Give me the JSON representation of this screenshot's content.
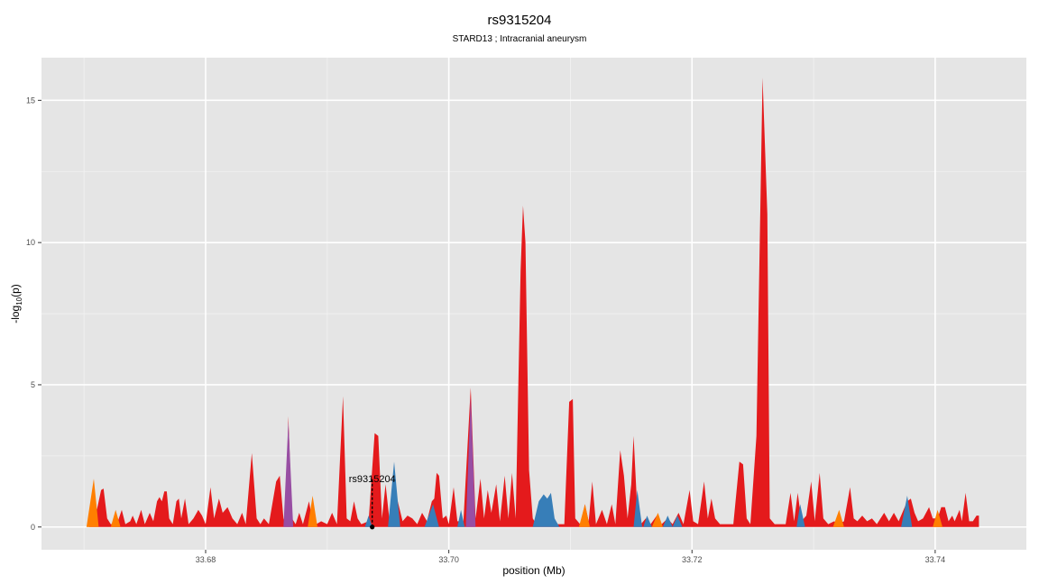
{
  "chart_data": {
    "type": "area",
    "title": "rs9315204",
    "subtitle": "STARD13 ; Intracranial aneurysm",
    "xlabel": "position (Mb)",
    "ylabel_main": "-log",
    "ylabel_sub": "10",
    "ylabel_tail": "(p)",
    "xlim": [
      33.6665,
      33.7475
    ],
    "ylim": [
      -0.8,
      16.5
    ],
    "xticks": [
      {
        "value": 33.68,
        "label": "33.68"
      },
      {
        "value": 33.7,
        "label": "33.70"
      },
      {
        "value": 33.72,
        "label": "33.72"
      },
      {
        "value": 33.74,
        "label": "33.74"
      }
    ],
    "yticks": [
      {
        "value": 0,
        "label": "0"
      },
      {
        "value": 5,
        "label": "5"
      },
      {
        "value": 10,
        "label": "10"
      },
      {
        "value": 15,
        "label": "15"
      }
    ],
    "grid": true,
    "background": "#e5e5e5",
    "colors": {
      "red": "#e41a1c",
      "blue": "#377eb8",
      "orange": "#ff7f00",
      "purple": "#984ea3"
    },
    "annotation": {
      "label": "rs9315204",
      "x": 33.6937,
      "y": 0,
      "line_top": 1.7
    },
    "series": [
      {
        "color": "red",
        "points": [
          [
            33.6704,
            0.4
          ],
          [
            33.6708,
            0.1
          ],
          [
            33.6714,
            1.3
          ],
          [
            33.6716,
            1.35
          ],
          [
            33.6719,
            0.3
          ],
          [
            33.6722,
            0.1
          ],
          [
            33.6727,
            0.1
          ],
          [
            33.6731,
            0.6
          ],
          [
            33.6734,
            0.1
          ],
          [
            33.6738,
            0.2
          ],
          [
            33.674,
            0.4
          ],
          [
            33.6743,
            0.1
          ],
          [
            33.6747,
            0.6
          ],
          [
            33.675,
            0.1
          ],
          [
            33.6754,
            0.5
          ],
          [
            33.6757,
            0.2
          ],
          [
            33.676,
            0.9
          ],
          [
            33.6762,
            1.05
          ],
          [
            33.6764,
            0.9
          ],
          [
            33.6766,
            1.25
          ],
          [
            33.6768,
            1.25
          ],
          [
            33.677,
            0.3
          ],
          [
            33.6773,
            0.1
          ],
          [
            33.6776,
            0.9
          ],
          [
            33.6778,
            1.0
          ],
          [
            33.678,
            0.3
          ],
          [
            33.6783,
            1.0
          ],
          [
            33.6786,
            0.1
          ],
          [
            33.679,
            0.3
          ],
          [
            33.6794,
            0.6
          ],
          [
            33.6797,
            0.4
          ],
          [
            33.68,
            0.1
          ],
          [
            33.6804,
            1.4
          ],
          [
            33.6807,
            0.3
          ],
          [
            33.6811,
            1.0
          ],
          [
            33.6814,
            0.5
          ],
          [
            33.6818,
            0.7
          ],
          [
            33.6822,
            0.3
          ],
          [
            33.6826,
            0.1
          ],
          [
            33.683,
            0.5
          ],
          [
            33.6833,
            0.1
          ],
          [
            33.6838,
            2.6
          ],
          [
            33.6842,
            0.3
          ],
          [
            33.6845,
            0.1
          ],
          [
            33.6848,
            0.3
          ],
          [
            33.6852,
            0.1
          ],
          [
            33.6858,
            1.6
          ],
          [
            33.6861,
            1.8
          ],
          [
            33.6864,
            0.3
          ],
          [
            33.6866,
            0.1
          ],
          [
            33.6868,
            3.9
          ],
          [
            33.6871,
            0.3
          ],
          [
            33.6874,
            0.1
          ],
          [
            33.6877,
            0.5
          ],
          [
            33.688,
            0.1
          ],
          [
            33.6885,
            0.9
          ],
          [
            33.6888,
            0.2
          ],
          [
            33.6891,
            0.1
          ],
          [
            33.6895,
            0.2
          ],
          [
            33.69,
            0.1
          ],
          [
            33.6904,
            0.5
          ],
          [
            33.6908,
            0.1
          ],
          [
            33.6913,
            4.6
          ],
          [
            33.6916,
            0.3
          ],
          [
            33.6919,
            0.2
          ],
          [
            33.6922,
            0.9
          ],
          [
            33.6925,
            0.3
          ],
          [
            33.6928,
            0.1
          ],
          [
            33.6934,
            0.2
          ],
          [
            33.6939,
            3.3
          ],
          [
            33.6942,
            3.2
          ],
          [
            33.6945,
            0.3
          ],
          [
            33.6948,
            1.5
          ],
          [
            33.6951,
            0.3
          ],
          [
            33.6954,
            0.1
          ],
          [
            33.6958,
            0.9
          ],
          [
            33.6962,
            0.2
          ],
          [
            33.6966,
            0.4
          ],
          [
            33.697,
            0.3
          ],
          [
            33.6974,
            0.1
          ],
          [
            33.6978,
            0.5
          ],
          [
            33.6982,
            0.2
          ],
          [
            33.6986,
            0.9
          ],
          [
            33.6988,
            1.0
          ],
          [
            33.699,
            1.9
          ],
          [
            33.6992,
            1.8
          ],
          [
            33.6995,
            0.3
          ],
          [
            33.6998,
            0.4
          ],
          [
            33.7,
            0.1
          ],
          [
            33.7004,
            1.4
          ],
          [
            33.7007,
            0.2
          ],
          [
            33.7012,
            0.2
          ],
          [
            33.7018,
            4.9
          ],
          [
            33.7022,
            0.3
          ],
          [
            33.7026,
            1.7
          ],
          [
            33.7029,
            0.3
          ],
          [
            33.7032,
            1.3
          ],
          [
            33.7035,
            0.5
          ],
          [
            33.7039,
            1.5
          ],
          [
            33.7042,
            0.2
          ],
          [
            33.7046,
            1.8
          ],
          [
            33.7049,
            0.3
          ],
          [
            33.7052,
            1.9
          ],
          [
            33.7055,
            0.3
          ],
          [
            33.7059,
            9.0
          ],
          [
            33.7061,
            11.3
          ],
          [
            33.7063,
            10.0
          ],
          [
            33.7066,
            2.0
          ],
          [
            33.7069,
            0.3
          ],
          [
            33.7072,
            0.1
          ],
          [
            33.7076,
            0.1
          ],
          [
            33.708,
            0.1
          ],
          [
            33.7085,
            0.1
          ],
          [
            33.709,
            0.1
          ],
          [
            33.7095,
            0.1
          ],
          [
            33.7099,
            4.4
          ],
          [
            33.7102,
            4.5
          ],
          [
            33.7104,
            0.3
          ],
          [
            33.7108,
            0.1
          ],
          [
            33.7112,
            0.8
          ],
          [
            33.7115,
            0.2
          ],
          [
            33.7118,
            1.6
          ],
          [
            33.7121,
            0.1
          ],
          [
            33.7126,
            0.6
          ],
          [
            33.713,
            0.1
          ],
          [
            33.7134,
            0.8
          ],
          [
            33.7137,
            0.1
          ],
          [
            33.7141,
            2.7
          ],
          [
            33.7144,
            1.8
          ],
          [
            33.7147,
            0.3
          ],
          [
            33.715,
            1.5
          ],
          [
            33.7152,
            3.2
          ],
          [
            33.7155,
            0.6
          ],
          [
            33.7158,
            0.1
          ],
          [
            33.7162,
            0.3
          ],
          [
            33.7166,
            0.1
          ],
          [
            33.7171,
            0.4
          ],
          [
            33.7175,
            0.1
          ],
          [
            33.718,
            0.3
          ],
          [
            33.7184,
            0.1
          ],
          [
            33.7189,
            0.5
          ],
          [
            33.7193,
            0.1
          ],
          [
            33.7198,
            1.3
          ],
          [
            33.7201,
            0.2
          ],
          [
            33.7205,
            0.1
          ],
          [
            33.721,
            1.6
          ],
          [
            33.7213,
            0.3
          ],
          [
            33.7216,
            1.0
          ],
          [
            33.7219,
            0.3
          ],
          [
            33.7223,
            0.1
          ],
          [
            33.7228,
            0.1
          ],
          [
            33.7234,
            0.1
          ],
          [
            33.7239,
            2.3
          ],
          [
            33.7242,
            2.2
          ],
          [
            33.7245,
            0.3
          ],
          [
            33.7248,
            0.1
          ],
          [
            33.7253,
            3.2
          ],
          [
            33.7258,
            15.8
          ],
          [
            33.7262,
            11.0
          ],
          [
            33.7264,
            0.3
          ],
          [
            33.7268,
            0.1
          ],
          [
            33.7272,
            0.1
          ],
          [
            33.7277,
            0.1
          ],
          [
            33.7281,
            1.2
          ],
          [
            33.7284,
            0.2
          ],
          [
            33.7287,
            1.2
          ],
          [
            33.729,
            0.2
          ],
          [
            33.7294,
            0.4
          ],
          [
            33.7298,
            1.6
          ],
          [
            33.7301,
            0.2
          ],
          [
            33.7305,
            1.9
          ],
          [
            33.7308,
            0.3
          ],
          [
            33.7312,
            0.1
          ],
          [
            33.7317,
            0.2
          ],
          [
            33.732,
            0.1
          ],
          [
            33.7325,
            0.2
          ],
          [
            33.733,
            1.4
          ],
          [
            33.7333,
            0.3
          ],
          [
            33.7336,
            0.2
          ],
          [
            33.734,
            0.4
          ],
          [
            33.7344,
            0.2
          ],
          [
            33.7348,
            0.3
          ],
          [
            33.7352,
            0.1
          ],
          [
            33.7358,
            0.5
          ],
          [
            33.7362,
            0.2
          ],
          [
            33.7366,
            0.5
          ],
          [
            33.737,
            0.2
          ],
          [
            33.7377,
            0.9
          ],
          [
            33.738,
            1.0
          ],
          [
            33.7383,
            0.5
          ],
          [
            33.7386,
            0.2
          ],
          [
            33.739,
            0.3
          ],
          [
            33.7395,
            0.7
          ],
          [
            33.7398,
            0.3
          ],
          [
            33.7402,
            0.3
          ],
          [
            33.7405,
            0.7
          ],
          [
            33.7408,
            0.7
          ],
          [
            33.7411,
            0.2
          ],
          [
            33.7414,
            0.4
          ],
          [
            33.7416,
            0.2
          ],
          [
            33.742,
            0.6
          ],
          [
            33.7422,
            0.2
          ],
          [
            33.7425,
            1.2
          ],
          [
            33.7428,
            0.2
          ],
          [
            33.7431,
            0.2
          ],
          [
            33.7434,
            0.4
          ],
          [
            33.7436,
            0.4
          ]
        ]
      },
      {
        "color": "blue",
        "points": [
          [
            33.6931,
            0.0
          ],
          [
            33.6934,
            0.4
          ],
          [
            33.6937,
            0.0
          ],
          [
            33.695,
            0.0
          ],
          [
            33.6955,
            2.3
          ],
          [
            33.696,
            0.0
          ],
          [
            33.698,
            0.0
          ],
          [
            33.6987,
            0.8
          ],
          [
            33.6992,
            0.0
          ],
          [
            33.7007,
            0.0
          ],
          [
            33.701,
            0.6
          ],
          [
            33.7013,
            0.0
          ],
          [
            33.7069,
            0.0
          ],
          [
            33.7074,
            0.9
          ],
          [
            33.7078,
            1.15
          ],
          [
            33.7081,
            1.0
          ],
          [
            33.7084,
            1.2
          ],
          [
            33.7087,
            0.3
          ],
          [
            33.7091,
            0.0
          ],
          [
            33.7152,
            0.0
          ],
          [
            33.7155,
            1.3
          ],
          [
            33.7159,
            0.0
          ],
          [
            33.716,
            0.0
          ],
          [
            33.7163,
            0.4
          ],
          [
            33.7167,
            0.0
          ],
          [
            33.7176,
            0.0
          ],
          [
            33.718,
            0.4
          ],
          [
            33.7184,
            0.0
          ],
          [
            33.7184,
            0.0
          ],
          [
            33.7188,
            0.4
          ],
          [
            33.7192,
            0.0
          ],
          [
            33.7286,
            0.0
          ],
          [
            33.7289,
            0.8
          ],
          [
            33.7293,
            0.0
          ],
          [
            33.7372,
            0.0
          ],
          [
            33.7377,
            1.1
          ],
          [
            33.7381,
            0.0
          ]
        ]
      },
      {
        "color": "orange",
        "points": [
          [
            33.6702,
            0.0
          ],
          [
            33.6708,
            1.7
          ],
          [
            33.6712,
            0.0
          ],
          [
            33.6722,
            0.0
          ],
          [
            33.6726,
            0.6
          ],
          [
            33.673,
            0.0
          ],
          [
            33.6884,
            0.0
          ],
          [
            33.6888,
            1.1
          ],
          [
            33.6892,
            0.0
          ],
          [
            33.7107,
            0.0
          ],
          [
            33.7112,
            0.8
          ],
          [
            33.7116,
            0.0
          ],
          [
            33.7167,
            0.0
          ],
          [
            33.7172,
            0.5
          ],
          [
            33.7176,
            0.0
          ],
          [
            33.7316,
            0.0
          ],
          [
            33.7321,
            0.6
          ],
          [
            33.7325,
            0.0
          ],
          [
            33.7398,
            0.0
          ],
          [
            33.7402,
            0.6
          ],
          [
            33.7406,
            0.0
          ]
        ]
      },
      {
        "color": "purple",
        "points": [
          [
            33.6864,
            0.0
          ],
          [
            33.6868,
            3.7
          ],
          [
            33.6872,
            0.0
          ],
          [
            33.7014,
            0.0
          ],
          [
            33.7018,
            4.6
          ],
          [
            33.7022,
            0.0
          ]
        ]
      }
    ]
  }
}
